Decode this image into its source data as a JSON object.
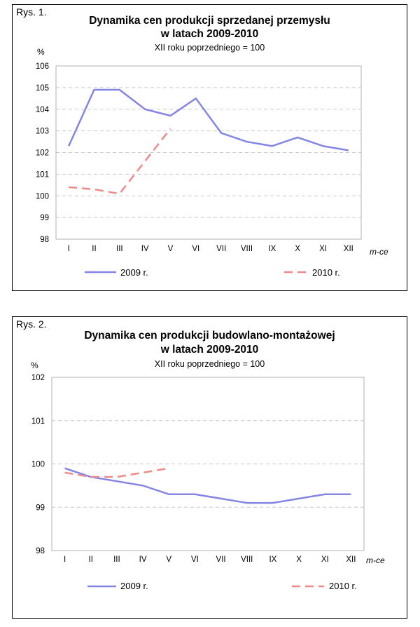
{
  "chart_data": [
    {
      "type": "line",
      "figure_label": "Rys. 1.",
      "title_line1": "Dynamika cen produkcji sprzedanej przemysłu",
      "title_line2": "w latach 2009-2010",
      "subtitle": "XII roku poprzedniego = 100",
      "ylabel": "%",
      "xlabel": "m-ce",
      "ylim": [
        98,
        106
      ],
      "yticks": [
        "98",
        "99",
        "100",
        "101",
        "102",
        "103",
        "104",
        "105",
        "106"
      ],
      "categories": [
        "I",
        "II",
        "III",
        "IV",
        "V",
        "VI",
        "VII",
        "VIII",
        "IX",
        "X",
        "XI",
        "XII"
      ],
      "grid": true,
      "legend_position": "bottom",
      "series": [
        {
          "name": "2009 r.",
          "color": "#8585e6",
          "dash": "solid",
          "values": [
            102.3,
            104.9,
            104.9,
            104.0,
            103.7,
            104.5,
            102.9,
            102.5,
            102.3,
            102.7,
            102.3,
            102.1
          ]
        },
        {
          "name": "2010 r.",
          "color": "#f08a8a",
          "dash": "dashed",
          "values": [
            100.4,
            100.3,
            100.1,
            101.6,
            103.1,
            null,
            null,
            null,
            null,
            null,
            null,
            null
          ]
        }
      ]
    },
    {
      "type": "line",
      "figure_label": "Rys. 2.",
      "title_line1": "Dynamika cen produkcji budowlano-montażowej",
      "title_line2": "w latach 2009-2010",
      "subtitle": "XII roku poprzedniego = 100",
      "ylabel": "%",
      "xlabel": "m-ce",
      "ylim": [
        98,
        102
      ],
      "yticks": [
        "98",
        "99",
        "100",
        "101",
        "102"
      ],
      "categories": [
        "I",
        "II",
        "III",
        "IV",
        "V",
        "VI",
        "VII",
        "VIII",
        "IX",
        "X",
        "XI",
        "XII"
      ],
      "grid": true,
      "legend_position": "bottom",
      "series": [
        {
          "name": "2009 r.",
          "color": "#8585e6",
          "dash": "solid",
          "values": [
            99.9,
            99.7,
            99.6,
            99.5,
            99.3,
            99.3,
            99.2,
            99.1,
            99.1,
            99.2,
            99.3,
            99.3
          ]
        },
        {
          "name": "2010 r.",
          "color": "#f08a8a",
          "dash": "dashed",
          "values": [
            99.8,
            99.7,
            99.7,
            99.8,
            99.9,
            null,
            null,
            null,
            null,
            null,
            null,
            null
          ]
        }
      ]
    }
  ]
}
